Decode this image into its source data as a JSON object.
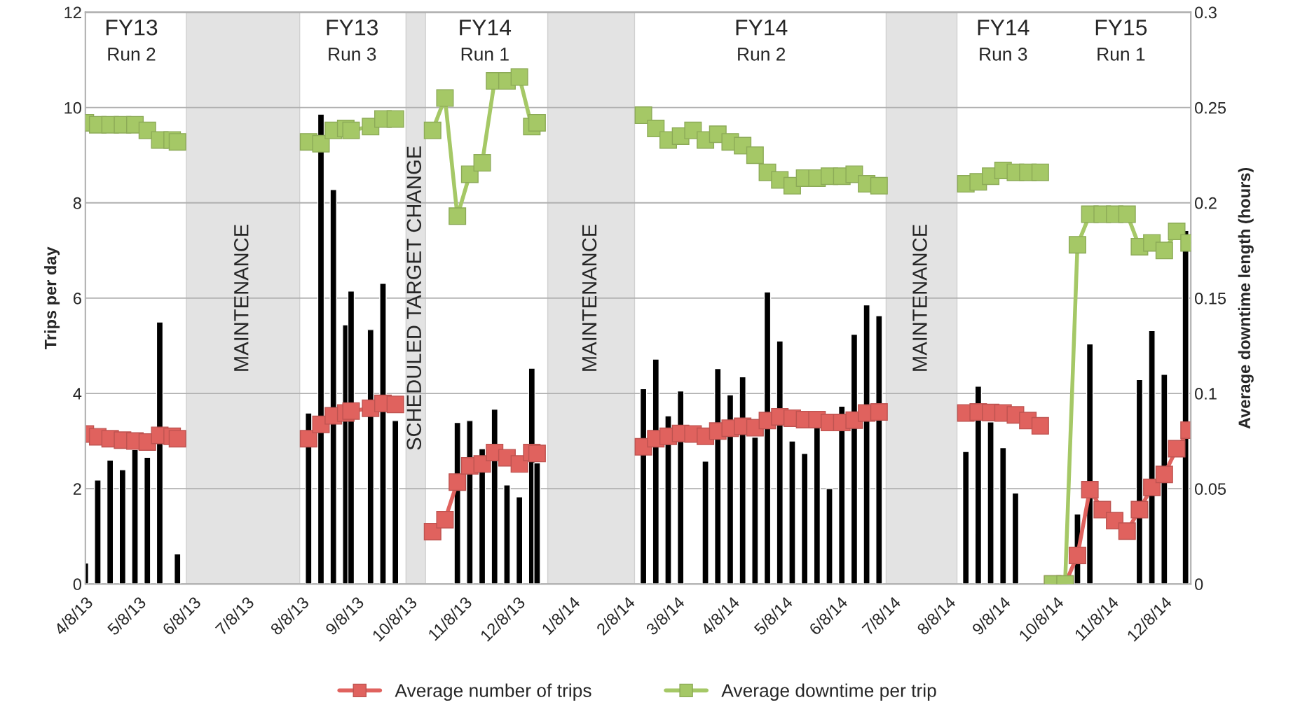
{
  "chart_data": {
    "type": "bar",
    "ylabel": "Trips per day",
    "y2label": "Average downtime length (hours)",
    "xlim": [
      "2013-04-08",
      "2014-12-23"
    ],
    "xticks": [
      {
        "value": "2013-04-08",
        "label": "4/8/13"
      },
      {
        "value": "2013-05-08",
        "label": "5/8/13"
      },
      {
        "value": "2013-06-08",
        "label": "6/8/13"
      },
      {
        "value": "2013-07-08",
        "label": "7/8/13"
      },
      {
        "value": "2013-08-08",
        "label": "8/8/13"
      },
      {
        "value": "2013-09-08",
        "label": "9/8/13"
      },
      {
        "value": "2013-10-08",
        "label": "10/8/13"
      },
      {
        "value": "2013-11-08",
        "label": "11/8/13"
      },
      {
        "value": "2013-12-08",
        "label": "12/8/13"
      },
      {
        "value": "2014-01-08",
        "label": "1/8/14"
      },
      {
        "value": "2014-02-08",
        "label": "2/8/14"
      },
      {
        "value": "2014-03-08",
        "label": "3/8/14"
      },
      {
        "value": "2014-04-08",
        "label": "4/8/14"
      },
      {
        "value": "2014-05-08",
        "label": "5/8/14"
      },
      {
        "value": "2014-06-08",
        "label": "6/8/14"
      },
      {
        "value": "2014-07-08",
        "label": "7/8/14"
      },
      {
        "value": "2014-08-08",
        "label": "8/8/14"
      },
      {
        "value": "2014-09-08",
        "label": "9/8/14"
      },
      {
        "value": "2014-10-08",
        "label": "10/8/14"
      },
      {
        "value": "2014-11-08",
        "label": "11/8/14"
      },
      {
        "value": "2014-12-08",
        "label": "12/8/14"
      }
    ],
    "ylim": [
      0,
      12
    ],
    "yticks": [
      0,
      2,
      4,
      6,
      8,
      10,
      12
    ],
    "y2lim": [
      0,
      0.3
    ],
    "y2ticks": [
      0,
      0.05,
      0.1,
      0.15,
      0.2,
      0.25,
      0.3
    ],
    "grid": "y",
    "legend": "bottom",
    "marker": "square",
    "line_style": "solid",
    "bands": [
      {
        "axis": "x",
        "from": "2013-06-04",
        "to": "2013-08-07",
        "label": "MAINTENANCE",
        "color": "#e3e3e3"
      },
      {
        "axis": "x",
        "from": "2013-10-06",
        "to": "2013-10-17",
        "label": "SCHEDULED TARGET CHANGE",
        "color": "#e3e3e3"
      },
      {
        "axis": "x",
        "from": "2013-12-25",
        "to": "2014-02-12",
        "label": "MAINTENANCE",
        "color": "#e3e3e3"
      },
      {
        "axis": "x",
        "from": "2014-07-04",
        "to": "2014-08-13",
        "label": "MAINTENANCE",
        "color": "#e3e3e3"
      }
    ],
    "annotations": [
      "FY13\nRun 2",
      "FY13\nRun 3",
      "FY14\nRun 1",
      "FY14\nRun 2",
      "FY14\nRun 3",
      "FY15\nRun 1"
    ],
    "series": [
      {
        "color": "#000000",
        "x": [
          "2013-04-08",
          "2013-04-15",
          "2013-04-22",
          "2013-04-29",
          "2013-05-06",
          "2013-05-13",
          "2013-05-20",
          "2013-05-27",
          "2013-05-30",
          "2013-08-12",
          "2013-08-19",
          "2013-08-26",
          "2013-09-02",
          "2013-09-05",
          "2013-09-16",
          "2013-09-23",
          "2013-09-30",
          "2013-10-21",
          "2013-10-28",
          "2013-11-04",
          "2013-11-11",
          "2013-11-18",
          "2013-11-25",
          "2013-12-02",
          "2013-12-09",
          "2013-12-16",
          "2013-12-19",
          "2014-02-17",
          "2014-02-24",
          "2014-03-03",
          "2014-03-10",
          "2014-03-17",
          "2014-03-24",
          "2014-03-31",
          "2014-04-07",
          "2014-04-14",
          "2014-04-21",
          "2014-04-28",
          "2014-05-05",
          "2014-05-12",
          "2014-05-19",
          "2014-05-26",
          "2014-06-02",
          "2014-06-09",
          "2014-06-16",
          "2014-06-23",
          "2014-06-30",
          "2014-08-18",
          "2014-08-25",
          "2014-09-01",
          "2014-09-08",
          "2014-09-15",
          "2014-10-20",
          "2014-10-27",
          "2014-11-24",
          "2014-12-01",
          "2014-12-08",
          "2014-12-15",
          "2014-12-20"
        ],
        "values": [
          0.44,
          2.18,
          2.6,
          2.4,
          2.82,
          2.66,
          5.5,
          null,
          0.63,
          3.59,
          9.86,
          8.28,
          5.44,
          6.15,
          5.34,
          6.31,
          3.43,
          null,
          null,
          3.39,
          3.43,
          2.84,
          3.67,
          2.08,
          1.83,
          4.53,
          2.54,
          4.1,
          4.72,
          3.53,
          4.05,
          null,
          2.58,
          4.52,
          3.97,
          4.35,
          3.08,
          6.13,
          5.1,
          3.0,
          2.74,
          3.3,
          2.0,
          3.73,
          5.24,
          5.86,
          5.63,
          2.78,
          4.15,
          3.4,
          2.86,
          1.91,
          1.47,
          5.04,
          4.29,
          5.32,
          4.4,
          null,
          7.42
        ]
      },
      {
        "type": "line",
        "name": "Average number of trips",
        "color": "#e0625e",
        "x": [
          "2013-04-08",
          "2013-04-15",
          "2013-04-22",
          "2013-04-29",
          "2013-05-06",
          "2013-05-13",
          "2013-05-20",
          "2013-05-27",
          "2013-05-30",
          "2013-07-01",
          "2013-08-12",
          "2013-08-19",
          "2013-08-26",
          "2013-09-02",
          "2013-09-05",
          "2013-09-16",
          "2013-09-23",
          "2013-09-30",
          "2013-10-10",
          "2013-10-21",
          "2013-10-28",
          "2013-11-04",
          "2013-11-11",
          "2013-11-18",
          "2013-11-25",
          "2013-12-02",
          "2013-12-09",
          "2013-12-16",
          "2013-12-19",
          "2014-01-15",
          "2014-02-17",
          "2014-02-24",
          "2014-03-03",
          "2014-03-10",
          "2014-03-17",
          "2014-03-24",
          "2014-03-31",
          "2014-04-07",
          "2014-04-14",
          "2014-04-21",
          "2014-04-28",
          "2014-05-05",
          "2014-05-12",
          "2014-05-19",
          "2014-05-26",
          "2014-06-02",
          "2014-06-09",
          "2014-06-16",
          "2014-06-23",
          "2014-06-30",
          "2014-07-20",
          "2014-08-18",
          "2014-08-25",
          "2014-09-01",
          "2014-09-08",
          "2014-09-15",
          "2014-09-22",
          "2014-09-29",
          "2014-10-02",
          "2014-10-06",
          "2014-10-13",
          "2014-10-20",
          "2014-10-27",
          "2014-11-03",
          "2014-11-10",
          "2014-11-17",
          "2014-11-24",
          "2014-12-01",
          "2014-12-08",
          "2014-12-15",
          "2014-12-22"
        ],
        "values": [
          3.15,
          3.09,
          3.05,
          3.02,
          3.0,
          2.98,
          3.12,
          3.1,
          3.05,
          null,
          3.05,
          3.35,
          3.53,
          3.59,
          3.63,
          3.69,
          3.79,
          3.77,
          null,
          1.1,
          1.35,
          2.14,
          2.48,
          2.52,
          2.76,
          2.65,
          2.52,
          2.76,
          2.74,
          null,
          2.88,
          3.05,
          3.1,
          3.16,
          3.15,
          3.1,
          3.21,
          3.27,
          3.31,
          3.28,
          3.43,
          3.51,
          3.48,
          3.45,
          3.45,
          3.39,
          3.39,
          3.44,
          3.59,
          3.61,
          null,
          3.59,
          3.61,
          3.6,
          3.59,
          3.55,
          3.43,
          3.32,
          null,
          0,
          0,
          0.6,
          1.98,
          1.56,
          1.33,
          1.11,
          1.56,
          2.03,
          2.3,
          2.84,
          3.23
        ]
      },
      {
        "type": "line",
        "name": "Average downtime per trip",
        "color": "#a5c866",
        "axis": "y2",
        "x": [
          "2013-04-08",
          "2013-04-15",
          "2013-04-22",
          "2013-04-29",
          "2013-05-06",
          "2013-05-13",
          "2013-05-20",
          "2013-05-27",
          "2013-05-30",
          "2013-07-01",
          "2013-08-12",
          "2013-08-19",
          "2013-08-26",
          "2013-09-02",
          "2013-09-05",
          "2013-09-16",
          "2013-09-23",
          "2013-09-30",
          "2013-10-10",
          "2013-10-21",
          "2013-10-28",
          "2013-11-04",
          "2013-11-11",
          "2013-11-18",
          "2013-11-25",
          "2013-12-02",
          "2013-12-09",
          "2013-12-16",
          "2013-12-19",
          "2014-01-15",
          "2014-02-17",
          "2014-02-24",
          "2014-03-03",
          "2014-03-10",
          "2014-03-17",
          "2014-03-24",
          "2014-03-31",
          "2014-04-07",
          "2014-04-14",
          "2014-04-21",
          "2014-04-28",
          "2014-05-05",
          "2014-05-12",
          "2014-05-19",
          "2014-05-26",
          "2014-06-02",
          "2014-06-09",
          "2014-06-16",
          "2014-06-23",
          "2014-06-30",
          "2014-07-20",
          "2014-08-18",
          "2014-08-25",
          "2014-09-01",
          "2014-09-08",
          "2014-09-15",
          "2014-09-22",
          "2014-09-29",
          "2014-10-02",
          "2014-10-06",
          "2014-10-13",
          "2014-10-20",
          "2014-10-27",
          "2014-11-03",
          "2014-11-10",
          "2014-11-17",
          "2014-11-24",
          "2014-12-01",
          "2014-12-08",
          "2014-12-15",
          "2014-12-22"
        ],
        "values": [
          0.242,
          0.241,
          0.241,
          0.241,
          0.241,
          0.238,
          0.233,
          0.233,
          0.232,
          null,
          0.232,
          0.231,
          0.238,
          0.239,
          0.238,
          0.24,
          0.244,
          0.244,
          null,
          0.238,
          0.255,
          0.193,
          0.215,
          0.221,
          0.264,
          0.264,
          0.266,
          0.24,
          0.242,
          null,
          0.246,
          0.239,
          0.233,
          0.235,
          0.238,
          0.233,
          0.236,
          0.232,
          0.23,
          0.225,
          0.216,
          0.212,
          0.209,
          0.213,
          0.213,
          0.214,
          0.214,
          0.215,
          0.21,
          0.209,
          null,
          0.21,
          0.211,
          0.214,
          0.217,
          0.216,
          0.216,
          0.216,
          null,
          0,
          0,
          0.178,
          0.194,
          0.194,
          0.194,
          0.194,
          0.177,
          0.179,
          0.175,
          0.185,
          0.179
        ]
      }
    ]
  }
}
